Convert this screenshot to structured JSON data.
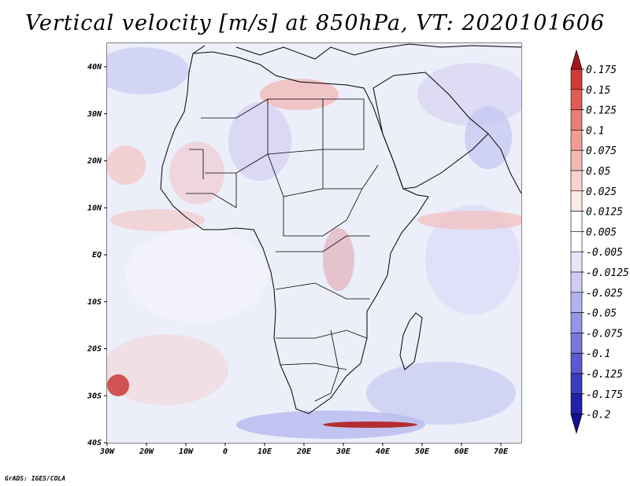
{
  "title": "Vertical velocity [m/s] at 850hPa, VT: 2020101606",
  "footer": "GrADS: IGES/COLA",
  "lat_ticks": [
    "40N",
    "30N",
    "20N",
    "10N",
    "EQ",
    "10S",
    "20S",
    "30S",
    "40S"
  ],
  "lon_ticks": [
    "30W",
    "20W",
    "10W",
    "0",
    "10E",
    "20E",
    "30E",
    "40E",
    "50E",
    "60E",
    "70E"
  ],
  "colorbar": {
    "labels": [
      "0.175",
      "0.15",
      "0.125",
      "0.1",
      "0.075",
      "0.05",
      "0.025",
      "0.0125",
      "0.005",
      "-0.005",
      "-0.0125",
      "-0.025",
      "-0.05",
      "-0.075",
      "-0.1",
      "-0.125",
      "-0.175",
      "-0.2"
    ],
    "colors": [
      "#a8141c",
      "#d23a36",
      "#e05e56",
      "#ea7e74",
      "#f29c94",
      "#f6b9b2",
      "#fad3ce",
      "#fde9e6",
      "#ffffff",
      "#ffffff",
      "#e6e6fb",
      "#cdcdf6",
      "#b2b2f0",
      "#9696e8",
      "#7878de",
      "#5a5ad2",
      "#3c3cc0",
      "#2222aa",
      "#140f96"
    ]
  },
  "colors": {
    "land_outline": "#000000",
    "field_base": "#f3f3fb"
  }
}
